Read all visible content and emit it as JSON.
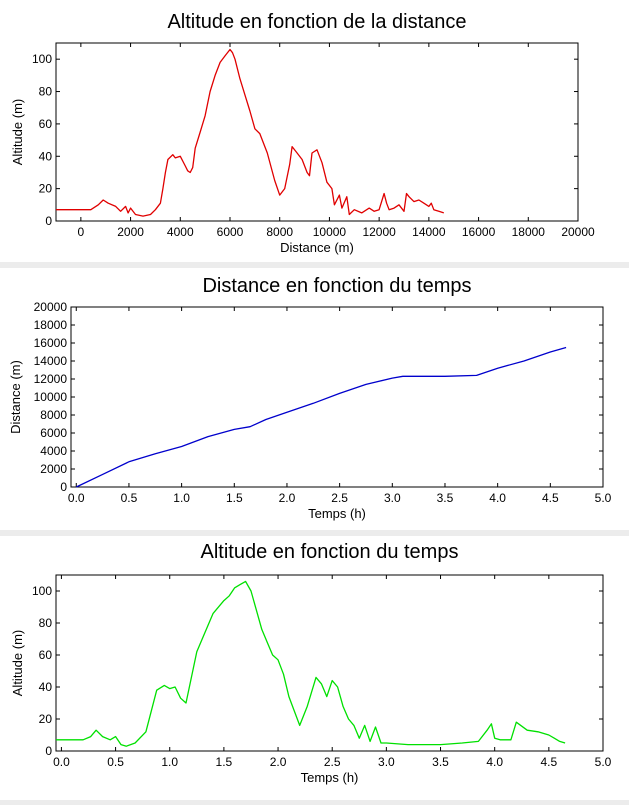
{
  "chart_data": [
    {
      "type": "line",
      "title": "Altitude en fonction de la distance",
      "xlabel": "Distance (m)",
      "ylabel": "Altitude (m)",
      "xlim": [
        -1000,
        20000
      ],
      "ylim": [
        0,
        110
      ],
      "xticks": [
        0,
        2000,
        4000,
        6000,
        8000,
        10000,
        12000,
        14000,
        16000,
        18000,
        20000
      ],
      "yticks": [
        0,
        20,
        40,
        60,
        80,
        100
      ],
      "grid": false,
      "color": "#e00000",
      "series": [
        {
          "x": [
            -1000,
            -500,
            0,
            400,
            700,
            900,
            1100,
            1400,
            1600,
            1800,
            1900,
            2000,
            2200,
            2500,
            2800,
            3000,
            3200,
            3300,
            3400,
            3500,
            3700,
            3800,
            4000,
            4200,
            4300,
            4400,
            4500,
            4600,
            4800,
            5000,
            5200,
            5400,
            5600,
            5800,
            6000,
            6100,
            6200,
            6400,
            6600,
            6800,
            7000,
            7200,
            7500,
            7800,
            8000,
            8200,
            8400,
            8500,
            8700,
            8900,
            9100,
            9200,
            9300,
            9500,
            9700,
            9900,
            10100,
            10200,
            10400,
            10500,
            10700,
            10800,
            11000,
            11300,
            11600,
            11800,
            12000,
            12200,
            12300,
            12400,
            12600,
            12800,
            13000,
            13100,
            13200,
            13400,
            13600,
            13800,
            14000,
            14100,
            14200,
            14400,
            14600
          ],
          "y": [
            7,
            7,
            7,
            7,
            10,
            13,
            11,
            9,
            6,
            9,
            5,
            8,
            4,
            3,
            4,
            7,
            11,
            20,
            30,
            38,
            41,
            39,
            40,
            34,
            31,
            30,
            33,
            45,
            55,
            65,
            80,
            90,
            98,
            102,
            106,
            104,
            100,
            88,
            78,
            68,
            57,
            54,
            42,
            25,
            16,
            20,
            35,
            46,
            42,
            38,
            30,
            28,
            42,
            44,
            36,
            24,
            20,
            10,
            16,
            8,
            15,
            4,
            7,
            5,
            8,
            6,
            7,
            17,
            11,
            7,
            8,
            10,
            6,
            17,
            15,
            12,
            13,
            11,
            9,
            11,
            7,
            6,
            5
          ]
        }
      ]
    },
    {
      "type": "line",
      "title": "Distance en fonction du temps",
      "xlabel": "Temps (h)",
      "ylabel": "Distance (m)",
      "xlim": [
        -0.05,
        5.0
      ],
      "ylim": [
        0,
        20000
      ],
      "xticks": [
        0.0,
        0.5,
        1.0,
        1.5,
        2.0,
        2.5,
        3.0,
        3.5,
        4.0,
        4.5,
        5.0
      ],
      "yticks": [
        0,
        2000,
        4000,
        6000,
        8000,
        10000,
        12000,
        14000,
        16000,
        18000,
        20000
      ],
      "grid": false,
      "color": "#0000cc",
      "series": [
        {
          "x": [
            0.0,
            0.25,
            0.5,
            0.75,
            1.0,
            1.25,
            1.5,
            1.65,
            1.8,
            2.0,
            2.25,
            2.5,
            2.75,
            3.0,
            3.1,
            3.25,
            3.5,
            3.8,
            4.0,
            4.25,
            4.5,
            4.65
          ],
          "y": [
            0,
            1400,
            2800,
            3700,
            4500,
            5600,
            6400,
            6700,
            7500,
            8300,
            9300,
            10400,
            11400,
            12100,
            12300,
            12300,
            12300,
            12400,
            13200,
            14000,
            15000,
            15500
          ]
        }
      ]
    },
    {
      "type": "line",
      "title": "Altitude en fonction du temps",
      "xlabel": "Temps (h)",
      "ylabel": "Altitude (m)",
      "xlim": [
        -0.05,
        5.0
      ],
      "ylim": [
        0,
        110
      ],
      "xticks": [
        0.0,
        0.5,
        1.0,
        1.5,
        2.0,
        2.5,
        3.0,
        3.5,
        4.0,
        4.5,
        5.0
      ],
      "yticks": [
        0,
        20,
        40,
        60,
        80,
        100
      ],
      "grid": false,
      "color": "#00e000",
      "series": [
        {
          "x": [
            -0.05,
            0.1,
            0.2,
            0.27,
            0.32,
            0.38,
            0.45,
            0.5,
            0.55,
            0.6,
            0.68,
            0.78,
            0.88,
            0.95,
            1.0,
            1.05,
            1.1,
            1.15,
            1.2,
            1.25,
            1.3,
            1.4,
            1.5,
            1.55,
            1.6,
            1.65,
            1.7,
            1.75,
            1.8,
            1.85,
            1.9,
            1.95,
            2.0,
            2.05,
            2.1,
            2.2,
            2.27,
            2.35,
            2.4,
            2.45,
            2.5,
            2.55,
            2.6,
            2.65,
            2.7,
            2.75,
            2.8,
            2.85,
            2.9,
            2.95,
            3.0,
            3.2,
            3.5,
            3.7,
            3.85,
            3.93,
            3.97,
            4.0,
            4.05,
            4.15,
            4.2,
            4.3,
            4.4,
            4.5,
            4.55,
            4.6,
            4.65
          ],
          "y": [
            7,
            7,
            7,
            9,
            13,
            9,
            7,
            9,
            4,
            3,
            5,
            12,
            38,
            41,
            39,
            40,
            33,
            30,
            46,
            62,
            70,
            86,
            94,
            97,
            102,
            104,
            106,
            100,
            88,
            76,
            68,
            60,
            57,
            48,
            34,
            16,
            28,
            46,
            42,
            34,
            44,
            40,
            28,
            20,
            16,
            8,
            16,
            6,
            15,
            5,
            5,
            4,
            4,
            5,
            6,
            13,
            17,
            8,
            7,
            7,
            18,
            13,
            12,
            10,
            8,
            6,
            5
          ]
        }
      ]
    }
  ]
}
